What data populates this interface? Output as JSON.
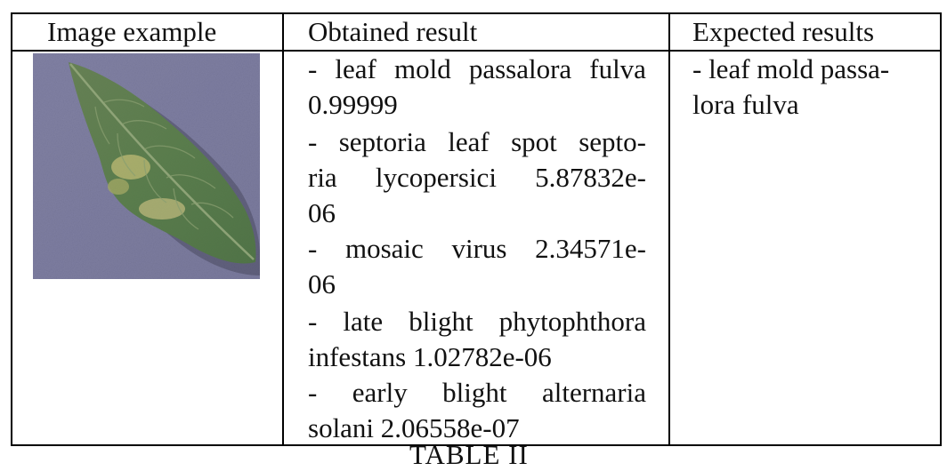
{
  "table": {
    "headers": {
      "image": "Image example",
      "obtained": "Obtained result",
      "expected": "Expected results"
    },
    "image_alt": "tomato leaf with leaf mold",
    "obtained_lines": [
      [
        "-",
        "leaf",
        "mold",
        "passalora",
        "fulva"
      ],
      [
        "0.99999"
      ],
      [
        "-",
        "septoria",
        "leaf",
        "spot",
        "septo-"
      ],
      [
        "ria",
        "lycopersici",
        "5.87832e-"
      ],
      [
        "06"
      ],
      [
        "-",
        "mosaic",
        "virus",
        "2.34571e-"
      ],
      [
        "06"
      ],
      [
        "-",
        "late",
        "blight",
        "phytophthora"
      ],
      [
        "infestans 1.02782e-06"
      ],
      [
        "-",
        "early",
        "blight",
        "alternaria"
      ],
      [
        "solani 2.06558e-07"
      ]
    ],
    "expected_lines": [
      "- leaf mold passa-",
      "lora fulva"
    ]
  },
  "caption": "TABLE II",
  "colors": {
    "leaf_dark": "#3d6a2f",
    "leaf_light": "#7fa055",
    "leaf_yellow": "#c9c86a",
    "background": "#8686b4"
  }
}
